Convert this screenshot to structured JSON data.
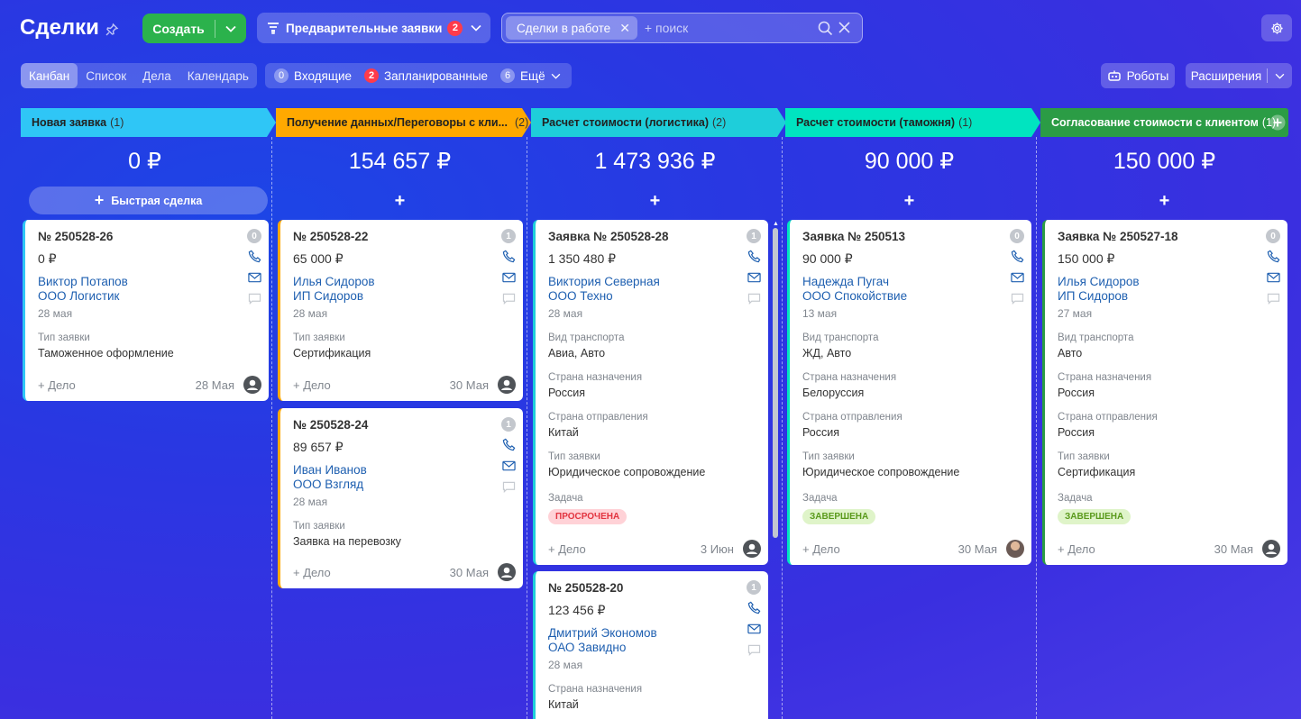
{
  "header": {
    "title": "Сделки",
    "create_label": "Создать",
    "pre_requests_label": "Предварительные заявки",
    "pre_requests_count": "2",
    "filter_chip": "Сделки в работе",
    "search_placeholder": "+ поиск"
  },
  "views": [
    "Канбан",
    "Список",
    "Дела",
    "Календарь"
  ],
  "counters": {
    "incoming_count": "0",
    "incoming_label": "Входящие",
    "planned_count": "2",
    "planned_label": "Запланированные",
    "more_count": "6",
    "more_label": "Ещё"
  },
  "right_buttons": {
    "robots": "Роботы",
    "extensions": "Расширения"
  },
  "columns": [
    {
      "name": "Новая заявка",
      "count": "(1)",
      "sum": "0 ₽",
      "color": "#2fc6f6",
      "quick_deal": "Быстрая сделка"
    },
    {
      "name": "Получение данных/Переговоры с кли...",
      "count": "(2)",
      "sum": "154 657 ₽",
      "color": "#ffa900"
    },
    {
      "name": "Расчет стоимости (логистика)",
      "count": "(2)",
      "sum": "1 473 936 ₽",
      "color": "#1eceda"
    },
    {
      "name": "Расчет стоимости (таможня)",
      "count": "(1)",
      "sum": "90 000 ₽",
      "color": "#00e4c0"
    },
    {
      "name": "Согласование стоимости с клиентом",
      "count": "(1)",
      "sum": "150 000 ₽",
      "color": "#2b9c45"
    }
  ],
  "plus": "+",
  "add_activity": "+ Дело",
  "cards": [
    {
      "title": "№ 250528-26",
      "badge": "0",
      "sum": "0 ₽",
      "contact": "Виктор Потапов",
      "company": "ООО Логистик",
      "date": "28 мая",
      "f1_label": "Тип заявки",
      "f1_value": "Таможенное оформление",
      "foot_date": "28 Мая"
    },
    {
      "title": "№ 250528-22",
      "badge": "1",
      "sum": "65 000 ₽",
      "contact": "Илья Сидоров",
      "company": "ИП Сидоров",
      "date": "28 мая",
      "f1_label": "Тип заявки",
      "f1_value": "Сертификация",
      "foot_date": "30 Мая"
    },
    {
      "title": "№ 250528-24",
      "badge": "1",
      "sum": "89 657 ₽",
      "contact": "Иван Иванов",
      "company": "ООО Взгляд",
      "date": "28 мая",
      "f1_label": "Тип заявки",
      "f1_value": "Заявка на перевозку",
      "foot_date": "30 Мая"
    },
    {
      "title": "Заявка № 250528-28",
      "badge": "1",
      "sum": "1 350 480 ₽",
      "contact": "Виктория Северная",
      "company": "ООО Техно",
      "date": "28 мая",
      "f1_label": "Вид транспорта",
      "f1_value": "Авиа, Авто",
      "f2_label": "Страна назначения",
      "f2_value": "Россия",
      "f3_label": "Страна отправления",
      "f3_value": "Китай",
      "f4_label": "Тип заявки",
      "f4_value": "Юридическое сопровождение",
      "task_label": "Задача",
      "task_status": "ПРОСРОЧЕНА",
      "foot_date": "3 Июн"
    },
    {
      "title": "№ 250528-20",
      "badge": "1",
      "sum": "123 456 ₽",
      "contact": "Дмитрий Экономов",
      "company": "ОАО Завидно",
      "date": "28 мая",
      "f1_label": "Страна назначения",
      "f1_value": "Китай"
    },
    {
      "title": "Заявка № 250513",
      "badge": "0",
      "sum": "90 000 ₽",
      "contact": "Надежда Пугач",
      "company": "ООО Спокойствие",
      "date": "13 мая",
      "f1_label": "Вид транспорта",
      "f1_value": "ЖД, Авто",
      "f2_label": "Страна назначения",
      "f2_value": "Белоруссия",
      "f3_label": "Страна отправления",
      "f3_value": "Россия",
      "f4_label": "Тип заявки",
      "f4_value": "Юридическое сопровождение",
      "task_label": "Задача",
      "task_status": "ЗАВЕРШЕНА",
      "foot_date": "30 Мая"
    },
    {
      "title": "Заявка № 250527-18",
      "badge": "0",
      "sum": "150 000 ₽",
      "contact": "Илья Сидоров",
      "company": "ИП Сидоров",
      "date": "27 мая",
      "f1_label": "Вид транспорта",
      "f1_value": "Авто",
      "f2_label": "Страна назначения",
      "f2_value": "Россия",
      "f3_label": "Страна отправления",
      "f3_value": "Россия",
      "f4_label": "Тип заявки",
      "f4_value": "Сертификация",
      "task_label": "Задача",
      "task_status": "ЗАВЕРШЕНА",
      "foot_date": "30 Мая"
    }
  ],
  "icons": [
    "pin-icon",
    "chevron-down-icon",
    "funnel-icon",
    "search-icon",
    "close-icon",
    "gear-icon",
    "robot-icon",
    "phone-icon",
    "mail-icon",
    "chat-icon",
    "avatar-icon"
  ]
}
